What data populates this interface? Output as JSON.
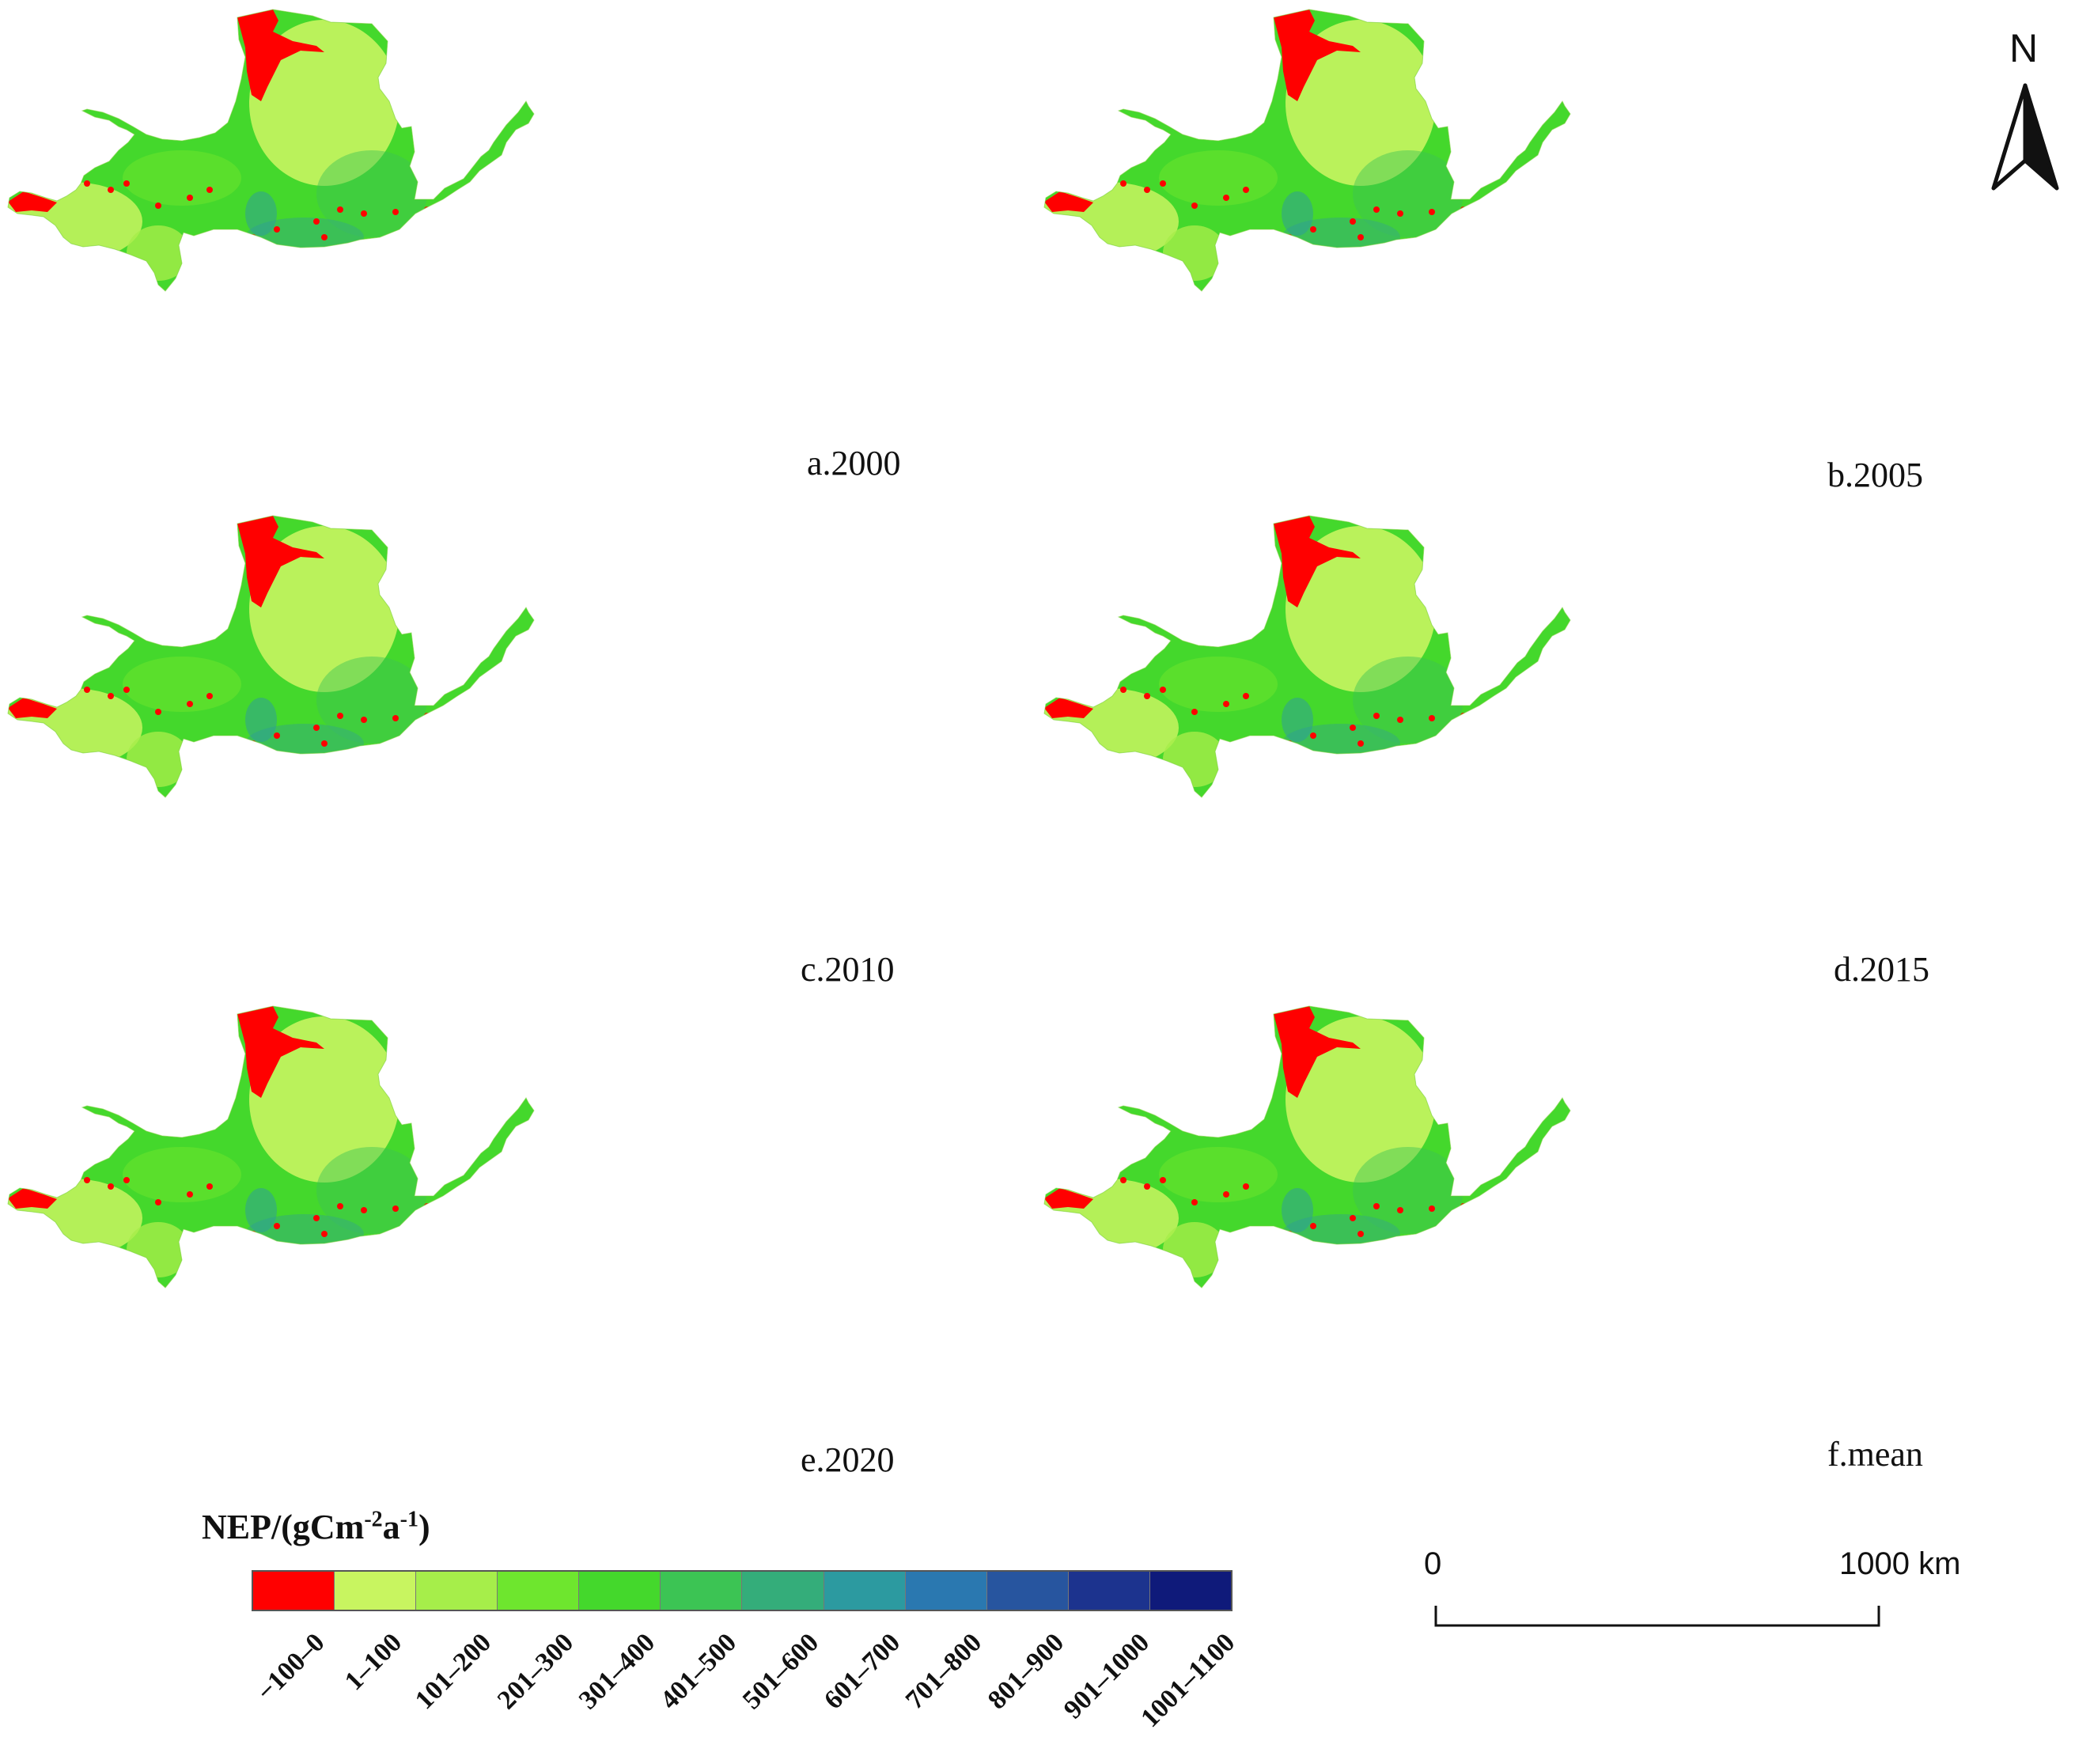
{
  "figure": {
    "panels": [
      {
        "id": "a",
        "label": "a.2000"
      },
      {
        "id": "b",
        "label": "b.2005"
      },
      {
        "id": "c",
        "label": "c.2010"
      },
      {
        "id": "d",
        "label": "d.2015"
      },
      {
        "id": "e",
        "label": "e.2020"
      },
      {
        "id": "f",
        "label": "f.mean"
      }
    ],
    "north_arrow": {
      "label": "N"
    },
    "legend": {
      "title_main": "NEP/(gCm",
      "title_exp1": "-2",
      "title_mid": "a",
      "title_exp2": "-1",
      "title_end": ")",
      "classes": [
        {
          "label": "−100–0",
          "color": "#ff0000"
        },
        {
          "label": "1–100",
          "color": "#c8f560"
        },
        {
          "label": "101–200",
          "color": "#a6ee4a"
        },
        {
          "label": "201–300",
          "color": "#6ee62e"
        },
        {
          "label": "301–400",
          "color": "#44d82c"
        },
        {
          "label": "401–500",
          "color": "#3cc454"
        },
        {
          "label": "501–600",
          "color": "#34ad7a"
        },
        {
          "label": "601–700",
          "color": "#2c9aa0"
        },
        {
          "label": "701–800",
          "color": "#2a78b0"
        },
        {
          "label": "801–900",
          "color": "#27559f"
        },
        {
          "label": "901–1000",
          "color": "#1c338e"
        },
        {
          "label": "1001–1100",
          "color": "#0f1a7a"
        }
      ]
    },
    "scale_bar": {
      "start_label": "0",
      "end_label": "1000 km"
    }
  }
}
